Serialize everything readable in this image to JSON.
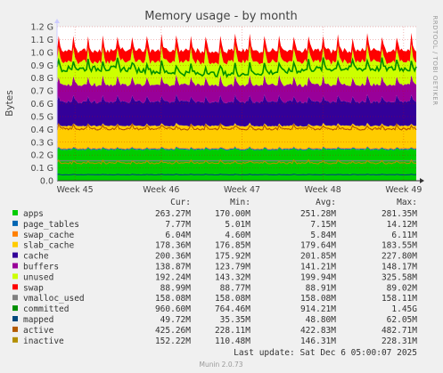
{
  "chart_data": {
    "type": "area",
    "title": "Memory usage - by month",
    "ylabel": "Bytes",
    "side_label": "RRDTOOL / TOBI OETIKER",
    "ylim": [
      0,
      1.2
    ],
    "y_unit": "G",
    "y_ticks": [
      {
        "v": 0,
        "label": "0.0"
      },
      {
        "v": 0.1,
        "label": "0.1 G"
      },
      {
        "v": 0.2,
        "label": "0.2 G"
      },
      {
        "v": 0.3,
        "label": "0.3 G"
      },
      {
        "v": 0.4,
        "label": "0.4 G"
      },
      {
        "v": 0.5,
        "label": "0.5 G"
      },
      {
        "v": 0.6,
        "label": "0.6 G"
      },
      {
        "v": 0.7,
        "label": "0.7 G"
      },
      {
        "v": 0.8,
        "label": "0.8 G"
      },
      {
        "v": 0.9,
        "label": "0.9 G"
      },
      {
        "v": 1.0,
        "label": "1.0 G"
      },
      {
        "v": 1.1,
        "label": "1.1 G"
      },
      {
        "v": 1.2,
        "label": "1.2 G"
      }
    ],
    "x_ticks": [
      "Week 45",
      "Week 46",
      "Week 47",
      "Week 48",
      "Week 49"
    ],
    "grid": true,
    "legend_columns": [
      "Cur:",
      "Min:",
      "Avg:",
      "Max:"
    ],
    "series": [
      {
        "name": "apps",
        "color": "#00cc00",
        "stacked": true,
        "cur": "263.27M",
        "min": "170.00M",
        "avg": "251.28M",
        "max": "281.35M"
      },
      {
        "name": "page_tables",
        "color": "#0066b3",
        "stacked": true,
        "cur": "7.77M",
        "min": "5.01M",
        "avg": "7.15M",
        "max": "14.12M"
      },
      {
        "name": "swap_cache",
        "color": "#ff8000",
        "stacked": true,
        "cur": "6.04M",
        "min": "4.60M",
        "avg": "5.84M",
        "max": "6.11M"
      },
      {
        "name": "slab_cache",
        "color": "#ffcc00",
        "stacked": true,
        "cur": "178.36M",
        "min": "176.85M",
        "avg": "179.64M",
        "max": "183.55M"
      },
      {
        "name": "cache",
        "color": "#330099",
        "stacked": true,
        "cur": "200.36M",
        "min": "175.92M",
        "avg": "201.85M",
        "max": "227.80M"
      },
      {
        "name": "buffers",
        "color": "#990099",
        "stacked": true,
        "cur": "138.87M",
        "min": "123.79M",
        "avg": "141.21M",
        "max": "148.17M"
      },
      {
        "name": "unused",
        "color": "#ccff00",
        "stacked": true,
        "cur": "192.24M",
        "min": "143.32M",
        "avg": "199.94M",
        "max": "325.58M"
      },
      {
        "name": "swap",
        "color": "#ff0000",
        "stacked": true,
        "cur": "88.99M",
        "min": "88.77M",
        "avg": "88.91M",
        "max": "89.02M"
      },
      {
        "name": "vmalloc_used",
        "color": "#808080",
        "stacked": false,
        "cur": "158.08M",
        "min": "158.08M",
        "avg": "158.08M",
        "max": "158.11M"
      },
      {
        "name": "committed",
        "color": "#008f00",
        "stacked": false,
        "cur": "960.60M",
        "min": "764.46M",
        "avg": "914.21M",
        "max": "1.45G"
      },
      {
        "name": "mapped",
        "color": "#00487d",
        "stacked": false,
        "cur": "49.72M",
        "min": "35.35M",
        "avg": "48.80M",
        "max": "62.05M"
      },
      {
        "name": "active",
        "color": "#b35a00",
        "stacked": false,
        "cur": "425.26M",
        "min": "228.11M",
        "avg": "422.83M",
        "max": "482.71M"
      },
      {
        "name": "inactive",
        "color": "#b38f00",
        "stacked": false,
        "cur": "152.22M",
        "min": "110.48M",
        "avg": "146.31M",
        "max": "228.31M"
      }
    ],
    "last_update": "Last update: Sat Dec  6 05:00:07 2025",
    "footer": "Munin 2.0.73"
  }
}
